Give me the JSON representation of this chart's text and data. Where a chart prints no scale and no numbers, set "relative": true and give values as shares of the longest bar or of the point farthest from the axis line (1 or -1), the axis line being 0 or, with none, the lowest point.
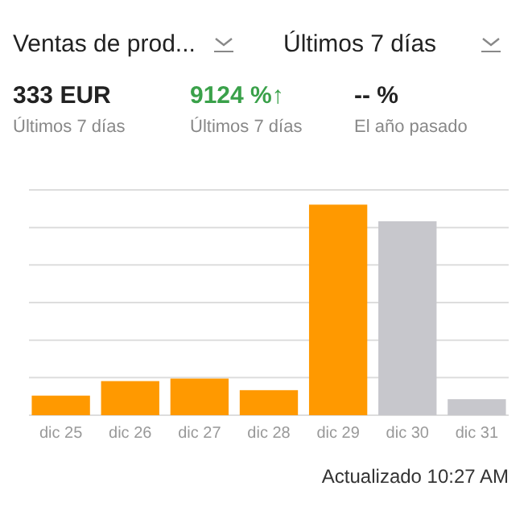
{
  "chart_data": {
    "type": "bar",
    "title": "Ventas de prod...",
    "subtitle": "Últimos 7 días",
    "annotations": [
      "333 EUR",
      "Últimos 7 días",
      "9124 %↑",
      "Últimos 7 días",
      "-- %",
      "El año pasado",
      "Actualizado 10:27 AM"
    ],
    "categories": [
      "dic 25",
      "dic 26",
      "dic 27",
      "dic 28",
      "dic 29",
      "dic 30",
      "dic 31"
    ],
    "values": [
      0.093,
      0.162,
      0.174,
      0.119,
      1,
      0.921,
      0.076
    ],
    "colors": [
      "#ff9900",
      "#ff9900",
      "#ff9900",
      "#ff9900",
      "#ff9900",
      "#c7c7cc",
      "#c7c7cc"
    ],
    "relative": true,
    "grid": true
  }
}
